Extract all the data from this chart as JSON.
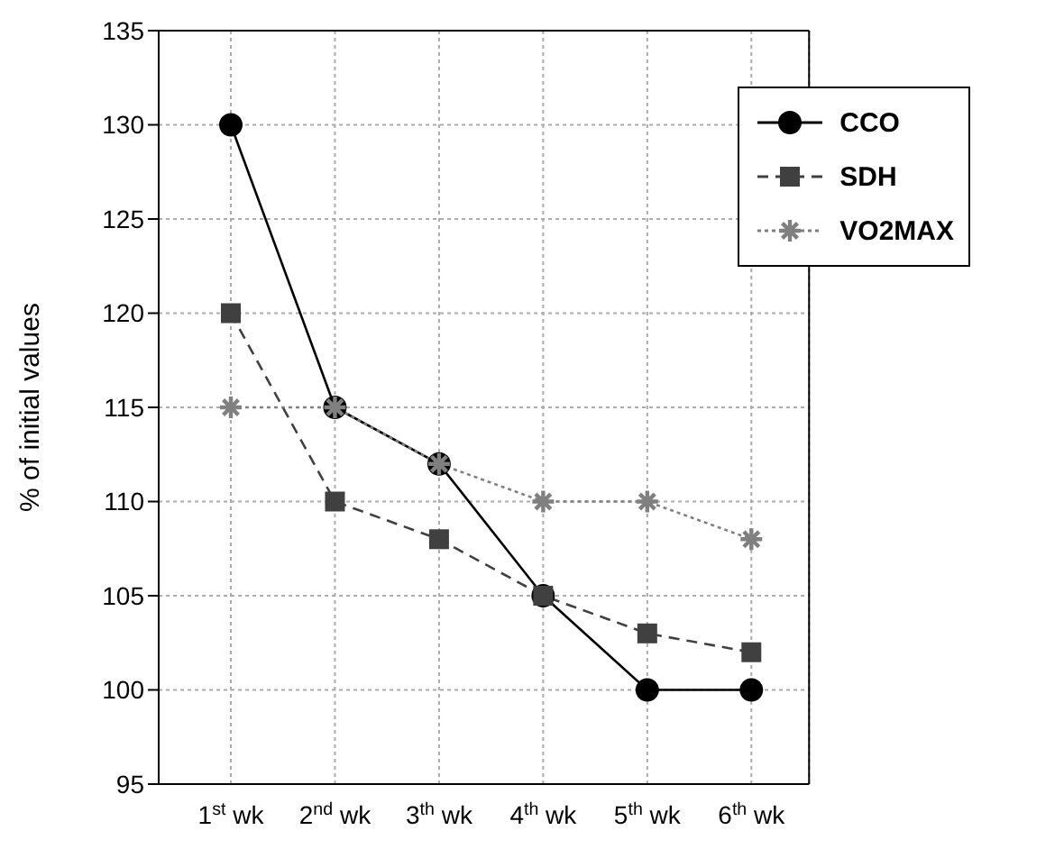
{
  "chart_data": {
    "type": "line",
    "ylabel": "% of initial values",
    "categories": [
      "1$^{st}$ wk",
      "2$^{nd}$ wk",
      "3$^{th}$ wk",
      "4$^{th}$ wk",
      "5$^{th}$ wk",
      "6$^{th}$ wk"
    ],
    "series": [
      {
        "name": "CCO",
        "color": "#000000",
        "marker": "circle",
        "line_style": "solid",
        "values": [
          130,
          115,
          112,
          105,
          100,
          100
        ]
      },
      {
        "name": "SDH",
        "color": "#404040",
        "marker": "square",
        "line_style": "dashed",
        "values": [
          120,
          110,
          108,
          105,
          103,
          102
        ]
      },
      {
        "name": "VO2MAX",
        "color": "#808080",
        "marker": "cross",
        "line_style": "dotted",
        "values": [
          115,
          115,
          112,
          110,
          110,
          108
        ]
      }
    ],
    "ylim": [
      95,
      135
    ],
    "yticks": [
      95,
      100,
      105,
      110,
      115,
      120,
      125,
      130,
      135
    ],
    "grid": true,
    "legend": "top right"
  }
}
